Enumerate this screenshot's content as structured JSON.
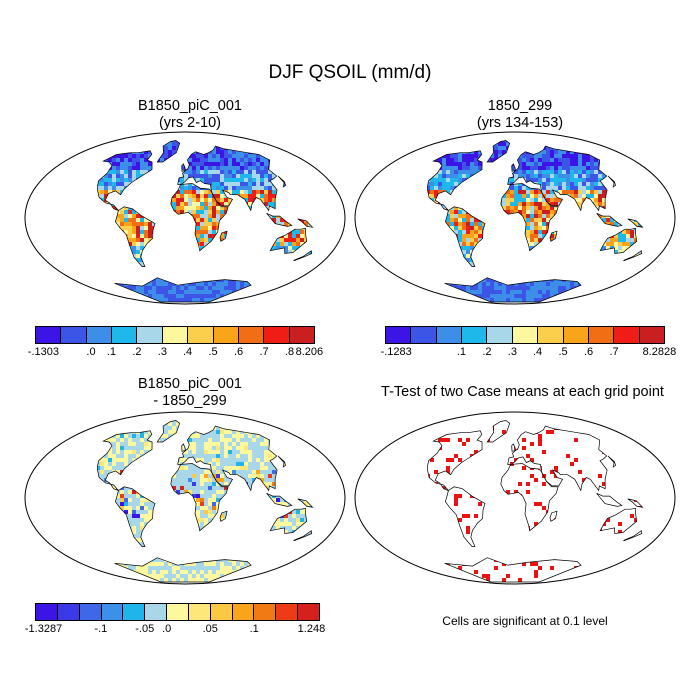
{
  "title": "DJF QSOIL (mm/d)",
  "panels": [
    {
      "title_line1": "B1850_piC_001",
      "title_line2": "(yrs 2-10)",
      "colorbar": {
        "colors": [
          "#3c14e6",
          "#3c55e6",
          "#3d8ee9",
          "#1fb8eb",
          "#a8d7ea",
          "#fdf7a0",
          "#fbcf4b",
          "#f8a51b",
          "#f26e14",
          "#ef1d16",
          "#c91f21"
        ],
        "labels": [
          "-.1303",
          ".0",
          ".1",
          ".2",
          ".3",
          ".4",
          ".5",
          ".6",
          ".7",
          ".8",
          "8.206"
        ]
      }
    },
    {
      "title_line1": "1850_299",
      "title_line2": "(yrs 134-153)",
      "colorbar": {
        "colors": [
          "#3c14e6",
          "#3c55e6",
          "#3d8ee9",
          "#1fb8eb",
          "#a8d7ea",
          "#fdf7a0",
          "#fbcf4b",
          "#f8a51b",
          "#f26e14",
          "#ef1d16",
          "#c91f21"
        ],
        "labels": [
          "-.1283",
          ".1",
          ".2",
          ".3",
          ".4",
          ".5",
          ".6",
          ".7",
          "8.2828"
        ]
      }
    },
    {
      "title_line1": "B1850_piC_001",
      "title_line2": "- 1850_299",
      "colorbar": {
        "colors": [
          "#3c14e6",
          "#3c3ae6",
          "#3d69e9",
          "#3d90ea",
          "#20b5ea",
          "#a8d7ea",
          "#fdf7a0",
          "#fde77a",
          "#fbc844",
          "#f8a51b",
          "#f27a14",
          "#ef3a16",
          "#d5201d"
        ],
        "labels": [
          "-1.3287",
          "-.1",
          "-.05",
          ".0",
          ".05",
          ".1",
          "1.248"
        ]
      }
    },
    {
      "title_line1": "T-Test of two Case means at each grid point",
      "note": "Cells are significant at 0.1 level"
    }
  ]
}
